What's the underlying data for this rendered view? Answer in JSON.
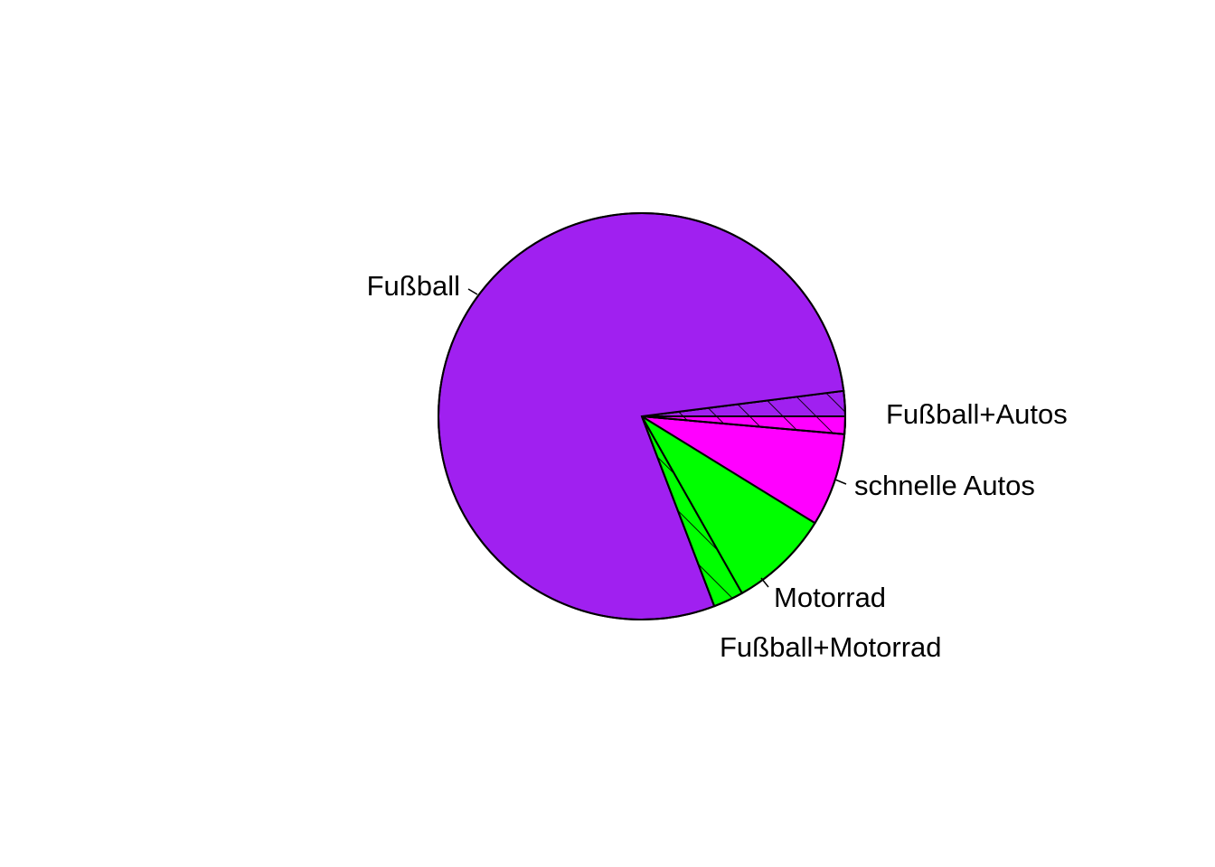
{
  "chart_data": {
    "type": "pie",
    "title": "",
    "start_angle_deg": 0,
    "direction": "counterclockwise",
    "slices": [
      {
        "label": "Fußball+Autos",
        "value": 2.0,
        "color": "#A020F0",
        "hatch": true
      },
      {
        "label": "Fußball",
        "value": 78.8,
        "color": "#A020F0",
        "hatch": false
      },
      {
        "label": "Fußball+Motorrad",
        "value": 2.4,
        "color": "#00FF00",
        "hatch": true
      },
      {
        "label": "Motorrad",
        "value": 8.0,
        "color": "#00FF00",
        "hatch": false
      },
      {
        "label": "schnelle Autos",
        "value": 7.4,
        "color": "#FF00FF",
        "hatch": false
      },
      {
        "label": "Fußball+Autos",
        "value": 1.4,
        "color": "#FF00FF",
        "hatch": true
      }
    ],
    "labels": [
      {
        "text": "Fußball",
        "side": "left"
      },
      {
        "text": "Fußball+Autos",
        "side": "right"
      },
      {
        "text": "schnelle Autos",
        "side": "right"
      },
      {
        "text": "Motorrad",
        "side": "right"
      },
      {
        "text": "Fußball+Motorrad",
        "side": "right"
      }
    ]
  }
}
